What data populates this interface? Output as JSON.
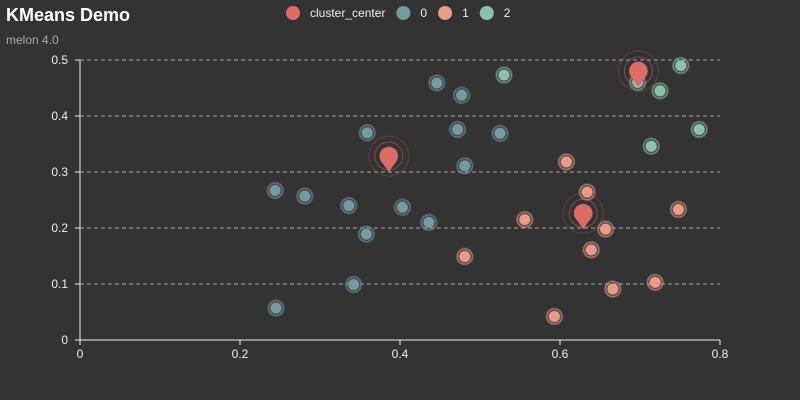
{
  "chart_data": {
    "type": "scatter",
    "title": "KMeans Demo",
    "subtitle": "melon 4.0",
    "x_ticks": [
      "0",
      "0.2",
      "0.4",
      "0.6",
      "0.8"
    ],
    "y_ticks": [
      "0",
      "0.1",
      "0.2",
      "0.3",
      "0.4",
      "0.5"
    ],
    "xlim": [
      0,
      0.8
    ],
    "ylim": [
      0,
      0.5
    ],
    "grid": "horizontal dashed",
    "legend_position": "top-center",
    "series": [
      {
        "name": "cluster_center",
        "color": "#dd6b66",
        "marker": "pin",
        "points": [
          [
            0.386,
            0.307
          ],
          [
            0.629,
            0.205
          ],
          [
            0.698,
            0.459
          ]
        ]
      },
      {
        "name": "0",
        "color": "#759aa0",
        "marker": "circle",
        "points": [
          [
            0.244,
            0.267
          ],
          [
            0.281,
            0.257
          ],
          [
            0.336,
            0.24
          ],
          [
            0.358,
            0.189
          ],
          [
            0.359,
            0.37
          ],
          [
            0.403,
            0.237
          ],
          [
            0.436,
            0.21
          ],
          [
            0.446,
            0.459
          ],
          [
            0.472,
            0.376
          ],
          [
            0.477,
            0.437
          ],
          [
            0.481,
            0.311
          ],
          [
            0.525,
            0.369
          ],
          [
            0.245,
            0.057
          ],
          [
            0.342,
            0.099
          ]
        ]
      },
      {
        "name": "1",
        "color": "#e69d87",
        "marker": "circle",
        "points": [
          [
            0.481,
            0.149
          ],
          [
            0.556,
            0.215
          ],
          [
            0.593,
            0.042
          ],
          [
            0.608,
            0.318
          ],
          [
            0.634,
            0.264
          ],
          [
            0.639,
            0.161
          ],
          [
            0.657,
            0.198
          ],
          [
            0.666,
            0.091
          ],
          [
            0.719,
            0.103
          ],
          [
            0.748,
            0.233
          ]
        ]
      },
      {
        "name": "2",
        "color": "#8dc1a9",
        "marker": "circle",
        "points": [
          [
            0.53,
            0.473
          ],
          [
            0.697,
            0.46
          ],
          [
            0.714,
            0.346
          ],
          [
            0.725,
            0.445
          ],
          [
            0.751,
            0.49
          ],
          [
            0.774,
            0.376
          ]
        ]
      }
    ]
  }
}
